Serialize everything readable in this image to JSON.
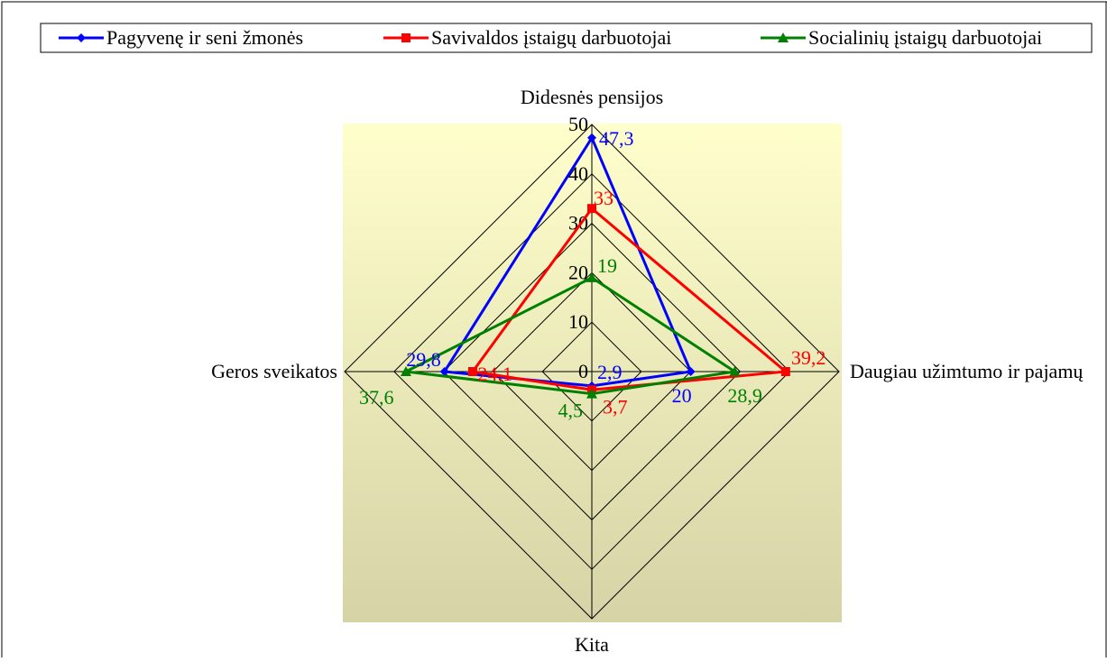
{
  "chart_data": {
    "type": "radar",
    "axes": [
      "Didesnės pensijos",
      "Daugiau užimtumo ir pajamų",
      "Kita",
      "Geros sveikatos"
    ],
    "rlim": [
      0,
      50
    ],
    "rticks": [
      "0",
      "10",
      "20",
      "30",
      "40",
      "50"
    ],
    "rtick_values": [
      0,
      10,
      20,
      30,
      40,
      50
    ],
    "legend_position": "top",
    "series": [
      {
        "name": "Pagyvenę ir seni žmonės",
        "color": "#0000ff",
        "marker": "diamond",
        "values": [
          47.3,
          20,
          2.9,
          29.8
        ],
        "labels": [
          "47,3",
          "20",
          "2,9",
          "29,8"
        ]
      },
      {
        "name": "Savivaldos įstaigų darbuotojai",
        "color": "#ff0000",
        "marker": "square",
        "values": [
          33,
          39.2,
          3.7,
          24.1
        ],
        "labels": [
          "33",
          "39,2",
          "3,7",
          "24,1"
        ]
      },
      {
        "name": "Socialinių įstaigų darbuotojai",
        "color": "#008000",
        "marker": "triangle",
        "values": [
          19,
          28.9,
          4.5,
          37.6
        ],
        "labels": [
          "19",
          "28,9",
          "4,5",
          "37,6"
        ]
      }
    ]
  }
}
